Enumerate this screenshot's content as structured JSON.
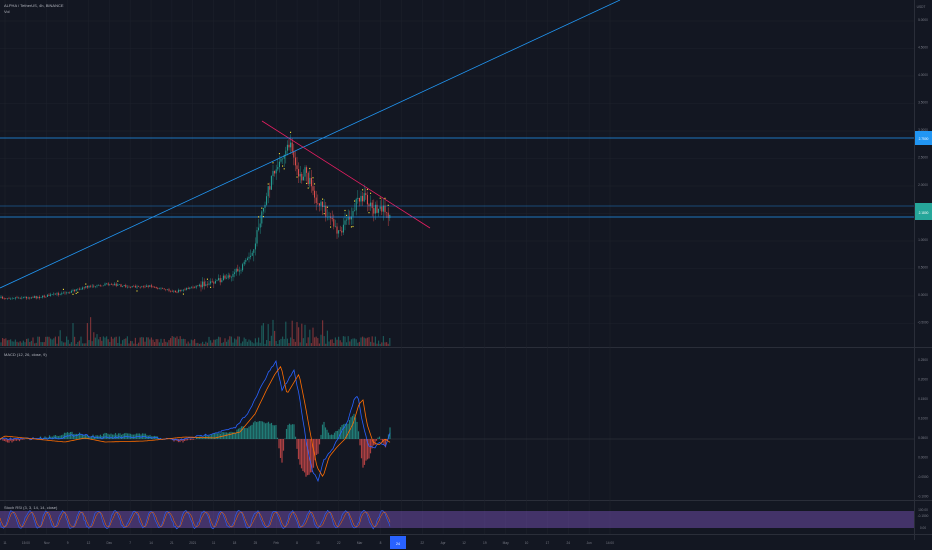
{
  "header": {
    "symbol": "ALPHA / TetherUS, 4h, BINANCE",
    "sub_indicator": "Vol"
  },
  "price_axis": {
    "unit": "USDT",
    "labels": [
      "5.0000",
      "4.5000",
      "4.0000",
      "3.5000",
      "3.0000",
      "2.5000",
      "2.0000",
      "1.5000",
      "1.0000",
      "0.5000",
      "0.0000",
      "-0.5000"
    ],
    "current_price": "2.1800",
    "resistance_tag": "2.7500"
  },
  "macd_panel": {
    "title": "MACD (12, 26, close, 9)",
    "labels": [
      "0.2500",
      "0.2000",
      "0.1500",
      "0.1000",
      "0.0500",
      "0.0000",
      "-0.0500",
      "-0.1000",
      "-0.1500"
    ]
  },
  "rsi_panel": {
    "title": "Stoch RSI (3, 3, 14, 14, close)",
    "labels": [
      "100.00",
      "0.00"
    ]
  },
  "time_axis": {
    "labels": [
      "11",
      "15:00",
      "Nov",
      "9",
      "12",
      "Dec",
      "7",
      "14",
      "21",
      "2021",
      "11",
      "18",
      "25",
      "Feb",
      "8",
      "15",
      "22",
      "Mar",
      "8",
      "15",
      "22",
      "Apr",
      "12",
      "19",
      "May",
      "10",
      "17",
      "24",
      "Jun",
      "14:00"
    ],
    "current_time": "24"
  },
  "colors": {
    "background": "#131722",
    "grid": "#1e222d",
    "up_candle": "#26a69a",
    "down_candle": "#ef5350",
    "trend_line": "#2196f3",
    "resistance_line": "#e91e63",
    "label_yellow": "#ffeb3b",
    "macd_line": "#2962ff",
    "signal_line": "#ff6d00",
    "stoch_k": "#2962ff",
    "stoch_d": "#ff6d00",
    "rsi_band": "#7e57c2",
    "price_tag": "#26a69a",
    "blue_tag": "#2196f3"
  }
}
